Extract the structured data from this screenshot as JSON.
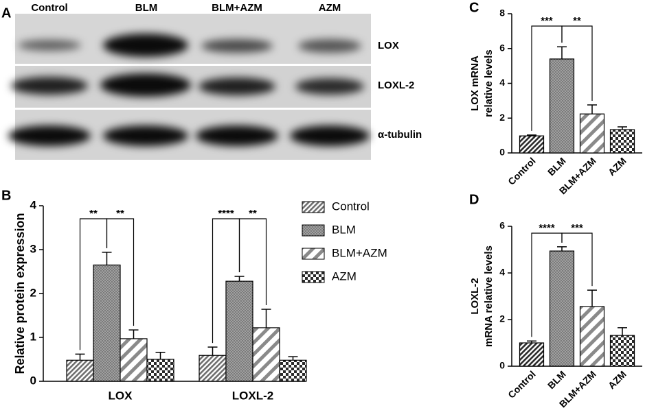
{
  "blot": {
    "panel": "A",
    "lanes": [
      "Control",
      "BLM",
      "BLM+AZM",
      "AZM"
    ],
    "bands": [
      "LOX",
      "LOXL-2",
      "α-tubulin"
    ]
  },
  "chart_data": [
    {
      "type": "grouped-bar",
      "panel": "B",
      "ylabel": "Relative protein expression",
      "categories": [
        "LOX",
        "LOXL-2"
      ],
      "series": [
        {
          "name": "Control",
          "color": "#6e6e6e",
          "pattern": "hatch",
          "values": [
            0.48,
            0.59
          ],
          "errors": [
            0.14,
            0.19
          ]
        },
        {
          "name": "BLM",
          "color": "#a0a0a0",
          "pattern": "dots",
          "values": [
            2.65,
            2.28
          ],
          "errors": [
            0.29,
            0.11
          ]
        },
        {
          "name": "BLM+AZM",
          "color": "#8a8a8a",
          "pattern": "stripes",
          "values": [
            0.97,
            1.22
          ],
          "errors": [
            0.2,
            0.42
          ]
        },
        {
          "name": "AZM",
          "color": "#2a2a2a",
          "pattern": "checker",
          "values": [
            0.5,
            0.48
          ],
          "errors": [
            0.16,
            0.08
          ]
        }
      ],
      "ylim": [
        0,
        4
      ],
      "yticks": [
        0,
        1,
        2,
        3,
        4
      ],
      "legend": "right",
      "annotations": [
        {
          "text": "**",
          "group": "LOX",
          "between": [
            "Control",
            "BLM"
          ]
        },
        {
          "text": "**",
          "group": "LOX",
          "between": [
            "BLM",
            "BLM+AZM"
          ]
        },
        {
          "text": "****",
          "group": "LOXL-2",
          "between": [
            "Control",
            "BLM"
          ]
        },
        {
          "text": "**",
          "group": "LOXL-2",
          "between": [
            "BLM",
            "BLM+AZM"
          ]
        }
      ]
    },
    {
      "type": "bar",
      "panel": "C",
      "ylabel": [
        "LOX mRNA",
        "relative levels"
      ],
      "categories": [
        "Control",
        "BLM",
        "BLM+AZM",
        "AZM"
      ],
      "values": [
        0.98,
        5.4,
        2.24,
        1.34
      ],
      "errors": [
        0.05,
        0.7,
        0.52,
        0.16
      ],
      "colors": [
        "#2a2a2a",
        "#a0a0a0",
        "#8a8a8a",
        "#2a2a2a"
      ],
      "patterns": [
        "hatch",
        "dots",
        "stripes",
        "checker"
      ],
      "ylim": [
        0,
        8
      ],
      "yticks": [
        0,
        2,
        4,
        6,
        8
      ],
      "annotations": [
        {
          "text": "***",
          "between": [
            "Control",
            "BLM"
          ]
        },
        {
          "text": "**",
          "between": [
            "BLM",
            "BLM+AZM"
          ]
        }
      ]
    },
    {
      "type": "bar",
      "panel": "D",
      "ylabel": [
        "LOXL-2",
        "mRNA relative levels"
      ],
      "categories": [
        "Control",
        "BLM",
        "BLM+AZM",
        "AZM"
      ],
      "values": [
        1.0,
        4.94,
        2.56,
        1.32
      ],
      "errors": [
        0.08,
        0.18,
        0.7,
        0.33
      ],
      "colors": [
        "#2a2a2a",
        "#a0a0a0",
        "#8a8a8a",
        "#2a2a2a"
      ],
      "patterns": [
        "hatch",
        "dots",
        "stripes",
        "checker"
      ],
      "ylim": [
        0,
        6
      ],
      "yticks": [
        0,
        2,
        4,
        6
      ],
      "annotations": [
        {
          "text": "****",
          "between": [
            "Control",
            "BLM"
          ]
        },
        {
          "text": "***",
          "between": [
            "BLM",
            "BLM+AZM"
          ]
        }
      ]
    }
  ]
}
